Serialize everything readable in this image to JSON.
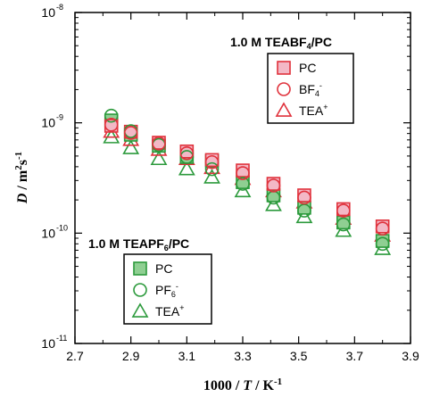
{
  "chart_data": {
    "type": "scatter",
    "title": "",
    "xlabel": {
      "prefix": "1000 / ",
      "var": "T",
      "unit": " / K",
      "unit_sup": "-1"
    },
    "ylabel": {
      "var": "D",
      "unit": " / m",
      "sup1": "2",
      "unit2": "s",
      "sup2": "-1"
    },
    "xlim": [
      2.7,
      3.9
    ],
    "ylim": [
      1e-11,
      1e-08
    ],
    "yscale": "log",
    "x_ticks": [
      "2.7",
      "2.9",
      "3.1",
      "3.3",
      "3.5",
      "3.7",
      "3.9"
    ],
    "y_ticks": [
      {
        "base": "10",
        "exp": "-11",
        "value": 1e-11
      },
      {
        "base": "10",
        "exp": "-10",
        "value": 1e-10
      },
      {
        "base": "10",
        "exp": "-9",
        "value": 1e-09
      },
      {
        "base": "10",
        "exp": "-8",
        "value": 1e-08
      }
    ],
    "x": [
      2.83,
      2.9,
      3.0,
      3.1,
      3.19,
      3.3,
      3.41,
      3.52,
      3.66,
      3.8
    ],
    "groups": [
      {
        "title": "1.0 M  TEABF4/PC",
        "title_main": "1.0 M  TEABF",
        "title_sub": "4",
        "title_end": "/PC",
        "color": "#e0323c",
        "series": [
          {
            "name": "PC",
            "label": {
              "main": "PC",
              "sub": "",
              "sup": ""
            },
            "marker": "square",
            "fill": "#f3b8c6",
            "values": [
              9.4e-10,
              8.3e-10,
              6.6e-10,
              5.5e-10,
              4.6e-10,
              3.7e-10,
              2.8e-10,
              2.2e-10,
              1.65e-10,
              1.15e-10
            ]
          },
          {
            "name": "BF4-",
            "label": {
              "main": "BF",
              "sub": "4",
              "sup": "-"
            },
            "marker": "circle",
            "fill": "none",
            "values": [
              9.6e-10,
              8.1e-10,
              6.5e-10,
              5.3e-10,
              4.4e-10,
              3.5e-10,
              2.7e-10,
              2.1e-10,
              1.6e-10,
              1.1e-10
            ]
          },
          {
            "name": "TEA+",
            "label": {
              "main": "TEA",
              "sub": "",
              "sup": "+"
            },
            "marker": "triangle",
            "fill": "none",
            "values": [
              8.3e-10,
              7e-10,
              5.7e-10,
              4.7e-10,
              3.9e-10,
              3.1e-10,
              2.4e-10,
              1.9e-10,
              1.35e-10,
              9.5e-11
            ]
          }
        ]
      },
      {
        "title": "1.0 M  TEAPF6/PC",
        "title_main": "1.0 M  TEAPF",
        "title_sub": "6",
        "title_end": "/PC",
        "color": "#2c9a3c",
        "series": [
          {
            "name": "PC",
            "label": {
              "main": "PC",
              "sub": "",
              "sup": ""
            },
            "marker": "square",
            "fill": "#8fcf92",
            "values": [
              1.05e-09,
              7.8e-10,
              6.2e-10,
              4.9e-10,
              4.5e-10,
              2.9e-10,
              2.2e-10,
              1.7e-10,
              1.25e-10,
              8.5e-11
            ]
          },
          {
            "name": "PF6-",
            "label": {
              "main": "PF",
              "sub": "6",
              "sup": "-"
            },
            "marker": "circle",
            "fill": "none",
            "values": [
              1.16e-09,
              8.4e-10,
              6.3e-10,
              4.9e-10,
              3.8e-10,
              2.8e-10,
              2.1e-10,
              1.6e-10,
              1.2e-10,
              8e-11
            ]
          },
          {
            "name": "TEA+",
            "label": {
              "main": "TEA",
              "sub": "",
              "sup": "+"
            },
            "marker": "triangle",
            "fill": "none",
            "values": [
              7.4e-10,
              5.9e-10,
              4.7e-10,
              3.8e-10,
              3.2e-10,
              2.4e-10,
              1.8e-10,
              1.4e-10,
              1.05e-10,
              7.2e-11
            ]
          }
        ]
      }
    ]
  }
}
